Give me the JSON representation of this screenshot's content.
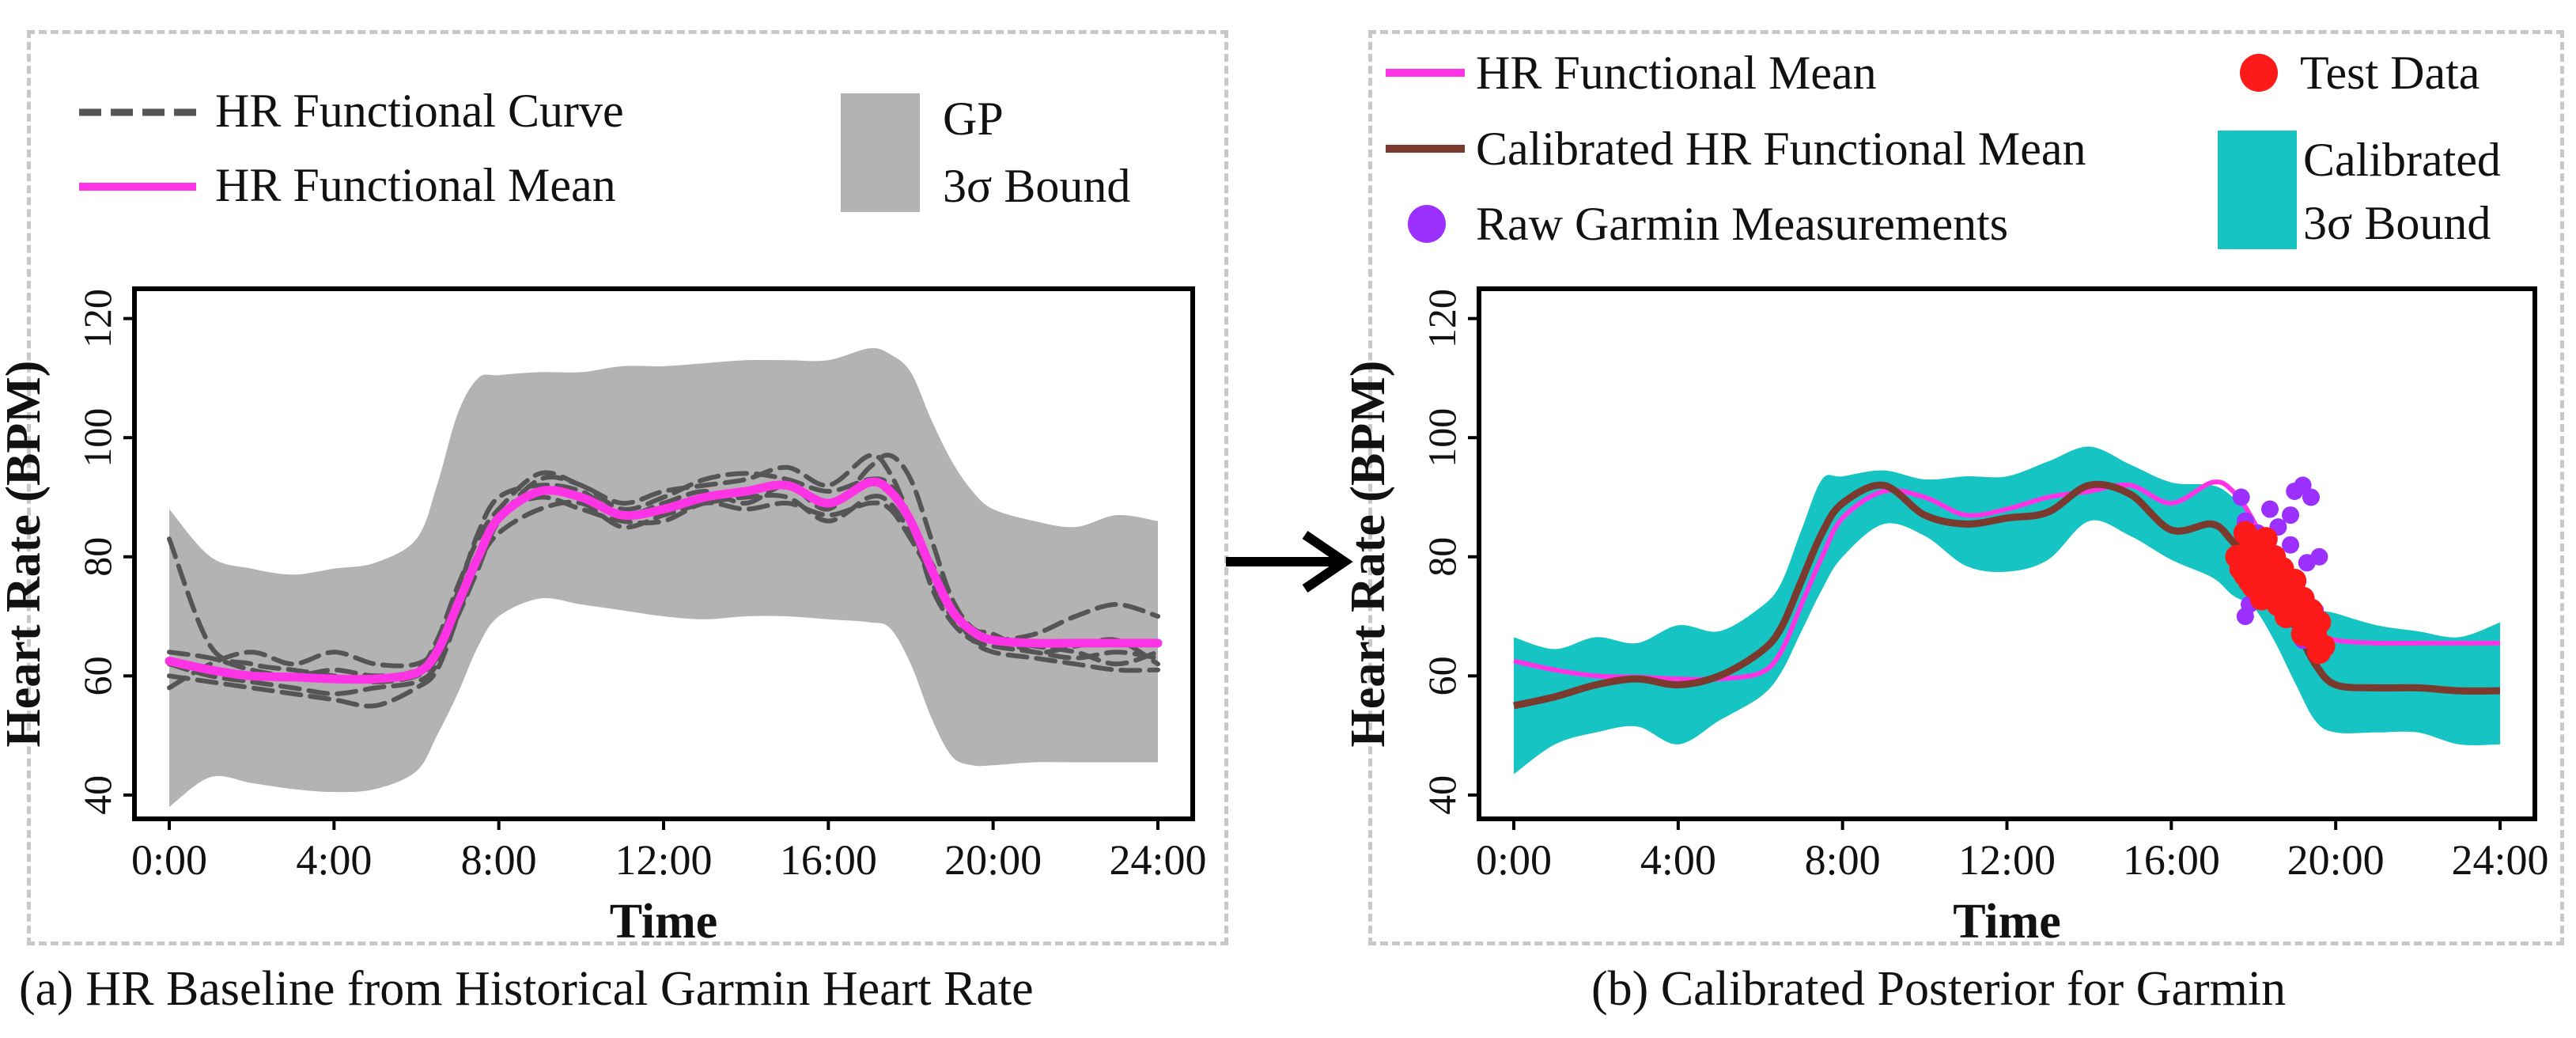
{
  "captions": {
    "a": "(a) HR Baseline from Historical Garmin Heart Rate",
    "b": "(b) Calibrated Posterior for Garmin"
  },
  "colors": {
    "mean": "#ff33e6",
    "curve": "#555555",
    "gp_band": "#b3b3b3",
    "calibrated_band": "#17c4c4",
    "calibrated_mean": "#7a3a2e",
    "raw": "#9b30ff",
    "test": "#ff1a1a"
  },
  "chart_data": [
    {
      "type": "line",
      "title": "",
      "xlabel": "Time",
      "ylabel": "Heart Rate (BPM)",
      "xlim": [
        0,
        24
      ],
      "ylim": [
        36,
        125
      ],
      "xticks": [
        "0:00",
        "4:00",
        "8:00",
        "12:00",
        "16:00",
        "20:00",
        "24:00"
      ],
      "yticks": [
        "40",
        "60",
        "80",
        "100",
        "120"
      ],
      "legend": {
        "curve": "HR Functional Curve",
        "mean": "HR Functional Mean",
        "band_line1": "GP",
        "band_line2": "3σ Bound"
      },
      "x": [
        0,
        1,
        2,
        3,
        4,
        5,
        6,
        6.5,
        7,
        7.5,
        8,
        9,
        10,
        11,
        12,
        13,
        14,
        15,
        16,
        17,
        17.5,
        18,
        18.5,
        19,
        19.5,
        20,
        21,
        22,
        23,
        24
      ],
      "series": [
        {
          "name": "HR Functional Mean",
          "values": [
            62.5,
            61,
            60,
            59.8,
            59.5,
            59.5,
            60.5,
            64,
            72,
            80,
            86.5,
            91,
            90,
            87,
            88,
            90,
            91,
            92,
            89,
            92.5,
            91,
            86,
            78,
            71,
            67.5,
            66,
            65.5,
            65.5,
            65.5,
            65.5
          ]
        },
        {
          "name": "GP 3σ Upper",
          "values": [
            88,
            80,
            78,
            77,
            78,
            79,
            83,
            92,
            104,
            110,
            110.5,
            111,
            111,
            112,
            112,
            112.5,
            113,
            113,
            113,
            115,
            114,
            111,
            103,
            96,
            91,
            88,
            86,
            85,
            87,
            86
          ]
        },
        {
          "name": "GP 3σ Lower",
          "values": [
            38,
            43,
            42,
            41,
            40.5,
            41,
            44,
            50,
            57,
            65,
            70,
            73,
            72,
            71,
            70,
            69.5,
            70,
            70,
            69.5,
            69,
            68,
            62,
            53,
            46.5,
            45,
            45,
            45.5,
            45.5,
            45.5,
            45.5
          ]
        }
      ],
      "functional_curves": [
        {
          "name": "HR Functional Curve 1",
          "values": [
            83,
            65,
            62,
            61,
            60,
            59,
            60,
            63,
            70,
            78,
            86,
            93,
            92,
            88,
            90,
            93,
            94,
            93,
            91,
            93,
            92,
            86,
            75,
            69,
            66,
            65,
            64,
            63,
            64,
            63
          ]
        },
        {
          "name": "HR Functional Curve 2",
          "values": [
            58,
            62,
            64,
            62,
            64,
            62,
            62,
            65,
            74,
            84,
            90,
            92,
            91,
            87,
            89,
            91,
            89,
            92,
            88,
            95,
            97,
            93,
            83,
            73,
            68,
            67,
            64,
            65,
            66,
            62
          ]
        },
        {
          "name": "HR Functional Curve 3",
          "values": [
            62,
            60,
            59,
            58,
            57,
            58,
            59,
            62,
            71,
            79,
            84,
            88,
            89,
            85,
            87,
            89,
            90,
            90,
            86,
            90,
            89,
            84,
            79,
            72,
            67,
            66,
            67,
            70,
            72,
            70
          ]
        },
        {
          "name": "HR Functional Curve 4",
          "values": [
            64,
            63,
            61,
            60,
            61,
            60,
            61,
            66,
            75,
            83,
            88,
            94,
            92,
            89,
            91,
            92,
            93,
            95,
            92,
            97,
            94,
            86,
            76,
            70,
            68,
            66,
            65,
            64,
            62,
            64
          ]
        },
        {
          "name": "HR Functional Curve 5",
          "values": [
            60,
            59,
            58,
            57,
            56,
            55,
            58,
            61,
            70,
            80,
            87,
            90,
            88,
            86,
            86,
            89,
            88,
            89,
            87,
            89,
            88,
            83,
            77,
            71,
            66,
            64,
            63,
            62,
            61,
            61
          ]
        }
      ]
    },
    {
      "type": "line",
      "title": "",
      "xlabel": "Time",
      "ylabel": "Heart Rate (BPM)",
      "xlim": [
        0,
        24
      ],
      "ylim": [
        36,
        125
      ],
      "xticks": [
        "0:00",
        "4:00",
        "8:00",
        "12:00",
        "16:00",
        "20:00",
        "24:00"
      ],
      "yticks": [
        "40",
        "60",
        "80",
        "100",
        "120"
      ],
      "legend": {
        "mean": "HR Functional Mean",
        "calibrated_mean": "Calibrated HR Functional Mean",
        "raw": "Raw Garmin Measurements",
        "test": "Test Data",
        "band_line1": "Calibrated",
        "band_line2": "3σ Bound"
      },
      "x": [
        0,
        1,
        2,
        3,
        4,
        5,
        6,
        6.5,
        7,
        7.5,
        8,
        9,
        10,
        11,
        12,
        13,
        14,
        15,
        16,
        17,
        17.5,
        18,
        18.5,
        19,
        19.5,
        20,
        21,
        22,
        23,
        24
      ],
      "series": [
        {
          "name": "HR Functional Mean",
          "values": [
            62.5,
            61,
            60,
            59.8,
            59.5,
            59.5,
            60.5,
            64,
            72,
            80,
            86.5,
            91,
            90,
            87,
            88,
            90,
            91,
            92,
            89,
            92.5,
            91,
            86,
            78,
            71,
            67.5,
            66,
            65.5,
            65.5,
            65.5,
            65.5
          ]
        },
        {
          "name": "Calibrated HR Functional Mean",
          "values": [
            55,
            56.5,
            58.5,
            59.5,
            58.5,
            60,
            64,
            68,
            76,
            84,
            89,
            92,
            87,
            85.5,
            86.5,
            87.5,
            92,
            90.5,
            84.5,
            85.5,
            82.5,
            79,
            73.5,
            68.5,
            62,
            58.5,
            58,
            58,
            57.5,
            57.5
          ]
        },
        {
          "name": "Calibrated 3σ Upper",
          "values": [
            66.5,
            64.5,
            66.5,
            65.5,
            68.5,
            67.5,
            71.5,
            75.5,
            84.5,
            93,
            93.5,
            94.5,
            93,
            93.5,
            93.5,
            96,
            98.5,
            95.5,
            92.5,
            92,
            90,
            86.5,
            81.5,
            75.5,
            71.5,
            70.5,
            68.5,
            67.5,
            66.5,
            69
          ]
        },
        {
          "name": "Calibrated 3σ Lower",
          "values": [
            43.5,
            48.5,
            50.5,
            51.5,
            48.5,
            52.5,
            56.5,
            60.5,
            67.5,
            74.5,
            80,
            85.5,
            83.5,
            78.5,
            77.5,
            79.5,
            86,
            83.5,
            79.5,
            76.5,
            73.5,
            71.5,
            66,
            59,
            52.5,
            50.5,
            50.5,
            50.5,
            48.5,
            48.5
          ]
        }
      ],
      "raw_garmin_measurements": {
        "x": [
          17.7,
          17.8,
          17.9,
          18.0,
          18.1,
          18.2,
          18.3,
          18.4,
          18.5,
          18.6,
          18.7,
          18.8,
          18.9,
          19.0,
          19.1,
          19.2,
          19.3,
          19.4,
          19.5,
          17.8,
          18.3,
          18.9,
          19.4,
          19.6,
          17.9,
          18.6,
          19.2
        ],
        "y": [
          90,
          86,
          82,
          78,
          84,
          75,
          80,
          88,
          73,
          85,
          77,
          70,
          82,
          91,
          74,
          92,
          79,
          68,
          71,
          70,
          83,
          87,
          90,
          80,
          72,
          74,
          66
        ]
      },
      "test_data": {
        "x": [
          17.6,
          17.7,
          17.8,
          17.9,
          18.0,
          18.1,
          18.2,
          18.3,
          18.4,
          18.5,
          18.6,
          18.7,
          18.8,
          18.9,
          19.0,
          19.1,
          19.2,
          19.3,
          19.4,
          19.5,
          19.6,
          19.7,
          17.8,
          18.0,
          18.2,
          18.4,
          18.6,
          18.8,
          19.0,
          19.2,
          19.4,
          19.6,
          17.9,
          18.3,
          18.7,
          19.1,
          19.5
        ],
        "y": [
          80,
          78,
          84,
          76,
          79,
          81,
          73,
          83,
          77,
          80,
          75,
          78,
          72,
          74,
          76,
          70,
          73,
          68,
          71,
          66,
          69,
          65,
          77,
          75,
          79,
          74,
          72,
          70,
          72,
          67,
          69,
          64,
          81,
          78,
          74,
          71,
          67
        ]
      }
    }
  ]
}
